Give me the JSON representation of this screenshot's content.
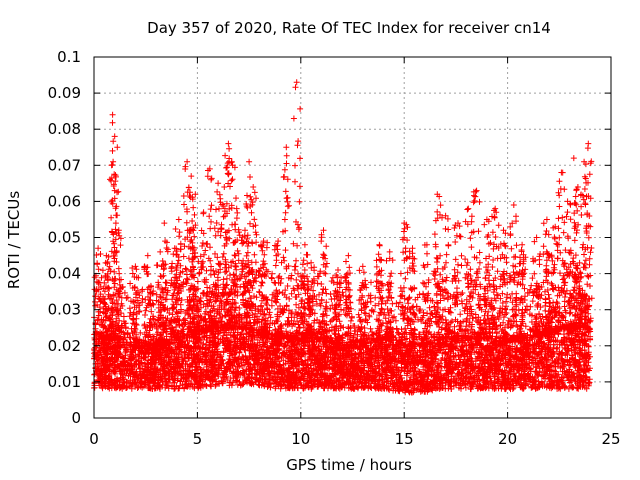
{
  "chart_data": {
    "type": "scatter",
    "title": "Day 357 of 2020, Rate Of TEC Index for receiver cn14",
    "xlabel": "GPS time / hours",
    "ylabel": "ROTI / TECUs",
    "xlim": [
      0,
      25
    ],
    "ylim": [
      0,
      0.1
    ],
    "x_ticks": [
      "0",
      "5",
      "10",
      "15",
      "20",
      "25"
    ],
    "y_ticks": [
      "0",
      "0.01",
      "0.02",
      "0.03",
      "0.04",
      "0.05",
      "0.06",
      "0.07",
      "0.08",
      "0.09",
      "0.1"
    ],
    "grid": true,
    "marker": "+",
    "series_color": "#ff0000",
    "series": [
      {
        "name": "ROTI",
        "x_range": [
          0,
          24
        ],
        "baseline_envelope": [
          [
            0,
            0.008,
            0.022
          ],
          [
            1,
            0.008,
            0.022
          ],
          [
            2,
            0.008,
            0.02
          ],
          [
            3,
            0.008,
            0.02
          ],
          [
            4,
            0.008,
            0.022
          ],
          [
            5,
            0.008,
            0.024
          ],
          [
            6,
            0.009,
            0.025
          ],
          [
            7,
            0.009,
            0.025
          ],
          [
            8,
            0.009,
            0.024
          ],
          [
            9,
            0.008,
            0.022
          ],
          [
            10,
            0.008,
            0.022
          ],
          [
            11,
            0.008,
            0.022
          ],
          [
            12,
            0.008,
            0.02
          ],
          [
            13,
            0.008,
            0.02
          ],
          [
            14,
            0.008,
            0.022
          ],
          [
            15,
            0.007,
            0.02
          ],
          [
            16,
            0.007,
            0.02
          ],
          [
            17,
            0.008,
            0.022
          ],
          [
            18,
            0.008,
            0.022
          ],
          [
            19,
            0.008,
            0.022
          ],
          [
            20,
            0.008,
            0.022
          ],
          [
            21,
            0.008,
            0.022
          ],
          [
            22,
            0.008,
            0.024
          ],
          [
            23,
            0.008,
            0.025
          ],
          [
            24,
            0.008,
            0.025
          ]
        ],
        "peaks": [
          [
            0.2,
            0.047
          ],
          [
            0.6,
            0.045
          ],
          [
            0.9,
            0.084
          ],
          [
            1.0,
            0.078
          ],
          [
            1.2,
            0.052
          ],
          [
            2.0,
            0.042
          ],
          [
            2.6,
            0.045
          ],
          [
            3.2,
            0.046
          ],
          [
            3.4,
            0.054
          ],
          [
            3.9,
            0.047
          ],
          [
            4.1,
            0.055
          ],
          [
            4.5,
            0.071
          ],
          [
            4.7,
            0.067
          ],
          [
            4.9,
            0.062
          ],
          [
            5.3,
            0.057
          ],
          [
            5.6,
            0.069
          ],
          [
            6.0,
            0.065
          ],
          [
            6.3,
            0.064
          ],
          [
            6.5,
            0.076
          ],
          [
            6.7,
            0.07
          ],
          [
            6.9,
            0.058
          ],
          [
            7.3,
            0.052
          ],
          [
            7.5,
            0.071
          ],
          [
            7.7,
            0.064
          ],
          [
            8.2,
            0.049
          ],
          [
            8.9,
            0.049
          ],
          [
            9.3,
            0.075
          ],
          [
            9.8,
            0.093
          ],
          [
            10.2,
            0.048
          ],
          [
            10.5,
            0.043
          ],
          [
            11.1,
            0.052
          ],
          [
            11.8,
            0.041
          ],
          [
            12.3,
            0.045
          ],
          [
            13.0,
            0.042
          ],
          [
            13.8,
            0.048
          ],
          [
            14.3,
            0.046
          ],
          [
            15.0,
            0.054
          ],
          [
            15.4,
            0.047
          ],
          [
            16.1,
            0.048
          ],
          [
            16.6,
            0.062
          ],
          [
            17.0,
            0.056
          ],
          [
            17.6,
            0.054
          ],
          [
            18.1,
            0.058
          ],
          [
            18.5,
            0.063
          ],
          [
            19.0,
            0.055
          ],
          [
            19.4,
            0.058
          ],
          [
            19.8,
            0.052
          ],
          [
            20.3,
            0.059
          ],
          [
            20.7,
            0.048
          ],
          [
            21.4,
            0.05
          ],
          [
            21.9,
            0.055
          ],
          [
            22.3,
            0.053
          ],
          [
            22.6,
            0.068
          ],
          [
            22.9,
            0.06
          ],
          [
            23.2,
            0.072
          ],
          [
            23.4,
            0.064
          ],
          [
            23.7,
            0.071
          ],
          [
            23.9,
            0.076
          ]
        ]
      }
    ]
  }
}
